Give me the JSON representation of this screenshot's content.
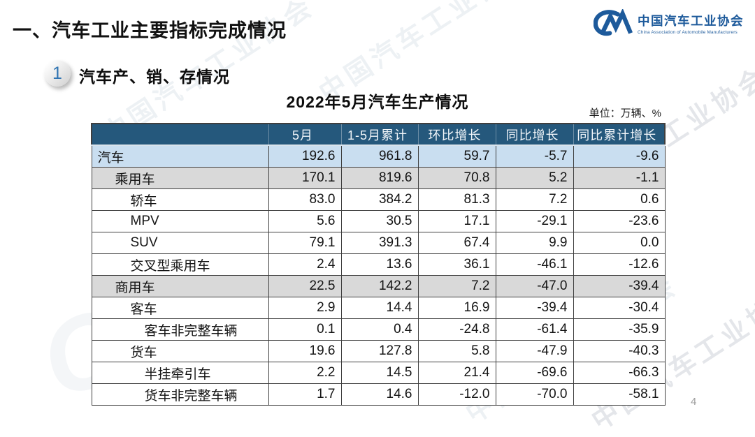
{
  "page": {
    "title": "一、汽车工业主要指标完成情况",
    "page_number": "4"
  },
  "logo": {
    "mark": "CM",
    "name_cn": "中国汽车工业协会",
    "name_en": "China Association of Automobile Manufacturers",
    "color": "#1d5a9b"
  },
  "section": {
    "badge_number": "1",
    "title": "汽车产、销、存情况"
  },
  "watermark": {
    "text": "中国汽车工业协会",
    "mark": "CM"
  },
  "table": {
    "title": "2022年5月汽车生产情况",
    "unit": "单位：万辆、%",
    "columns": [
      "",
      "5月",
      "1-5月累计",
      "环比增长",
      "同比增长",
      "同比累计增长"
    ],
    "rows": [
      {
        "label": "汽车",
        "indent": 0,
        "bg": "blue",
        "values": [
          "192.6",
          "961.8",
          "59.7",
          "-5.7",
          "-9.6"
        ]
      },
      {
        "label": "乘用车",
        "indent": 1,
        "bg": "gray",
        "values": [
          "170.1",
          "819.6",
          "70.8",
          "5.2",
          "-1.1"
        ]
      },
      {
        "label": "轿车",
        "indent": 2,
        "bg": "white",
        "values": [
          "83.0",
          "384.2",
          "81.3",
          "7.2",
          "0.6"
        ]
      },
      {
        "label": "MPV",
        "indent": 2,
        "bg": "white",
        "values": [
          "5.6",
          "30.5",
          "17.1",
          "-29.1",
          "-23.6"
        ]
      },
      {
        "label": "SUV",
        "indent": 2,
        "bg": "white",
        "values": [
          "79.1",
          "391.3",
          "67.4",
          "9.9",
          "0.0"
        ]
      },
      {
        "label": "交叉型乘用车",
        "indent": 2,
        "bg": "white",
        "values": [
          "2.4",
          "13.6",
          "36.1",
          "-46.1",
          "-12.6"
        ]
      },
      {
        "label": "商用车",
        "indent": 1,
        "bg": "gray",
        "values": [
          "22.5",
          "142.2",
          "7.2",
          "-47.0",
          "-39.4"
        ]
      },
      {
        "label": "客车",
        "indent": 2,
        "bg": "white",
        "values": [
          "2.9",
          "14.4",
          "16.9",
          "-39.4",
          "-30.4"
        ]
      },
      {
        "label": "客车非完整车辆",
        "indent": 3,
        "bg": "white",
        "values": [
          "0.1",
          "0.4",
          "-24.8",
          "-61.4",
          "-35.9"
        ]
      },
      {
        "label": "货车",
        "indent": 2,
        "bg": "white",
        "values": [
          "19.6",
          "127.8",
          "5.8",
          "-47.9",
          "-40.3"
        ]
      },
      {
        "label": "半挂牵引车",
        "indent": 3,
        "bg": "white",
        "values": [
          "2.2",
          "14.5",
          "21.4",
          "-69.6",
          "-66.3"
        ]
      },
      {
        "label": "货车非完整车辆",
        "indent": 3,
        "bg": "white",
        "values": [
          "1.7",
          "14.6",
          "-12.0",
          "-70.0",
          "-58.1"
        ]
      }
    ]
  },
  "colors": {
    "header_bg": "#25587c",
    "row_highlight_blue": "#c9def0",
    "row_highlight_gray": "#d9d9d9",
    "border": "#3f3f3f",
    "logo_blue": "#1d5a9b"
  },
  "chart_data": {
    "type": "table",
    "title": "2022年5月汽车生产情况",
    "unit": "万辆、%",
    "columns": [
      "5月",
      "1-5月累计",
      "环比增长",
      "同比增长",
      "同比累计增长"
    ],
    "rows": [
      {
        "category": "汽车",
        "values": [
          192.6,
          961.8,
          59.7,
          -5.7,
          -9.6
        ]
      },
      {
        "category": "乘用车",
        "values": [
          170.1,
          819.6,
          70.8,
          5.2,
          -1.1
        ]
      },
      {
        "category": "轿车",
        "values": [
          83.0,
          384.2,
          81.3,
          7.2,
          0.6
        ]
      },
      {
        "category": "MPV",
        "values": [
          5.6,
          30.5,
          17.1,
          -29.1,
          -23.6
        ]
      },
      {
        "category": "SUV",
        "values": [
          79.1,
          391.3,
          67.4,
          9.9,
          0.0
        ]
      },
      {
        "category": "交叉型乘用车",
        "values": [
          2.4,
          13.6,
          36.1,
          -46.1,
          -12.6
        ]
      },
      {
        "category": "商用车",
        "values": [
          22.5,
          142.2,
          7.2,
          -47.0,
          -39.4
        ]
      },
      {
        "category": "客车",
        "values": [
          2.9,
          14.4,
          16.9,
          -39.4,
          -30.4
        ]
      },
      {
        "category": "客车非完整车辆",
        "values": [
          0.1,
          0.4,
          -24.8,
          -61.4,
          -35.9
        ]
      },
      {
        "category": "货车",
        "values": [
          19.6,
          127.8,
          5.8,
          -47.9,
          -40.3
        ]
      },
      {
        "category": "半挂牵引车",
        "values": [
          2.2,
          14.5,
          21.4,
          -69.6,
          -66.3
        ]
      },
      {
        "category": "货车非完整车辆",
        "values": [
          1.7,
          14.6,
          -12.0,
          -70.0,
          -58.1
        ]
      }
    ]
  }
}
